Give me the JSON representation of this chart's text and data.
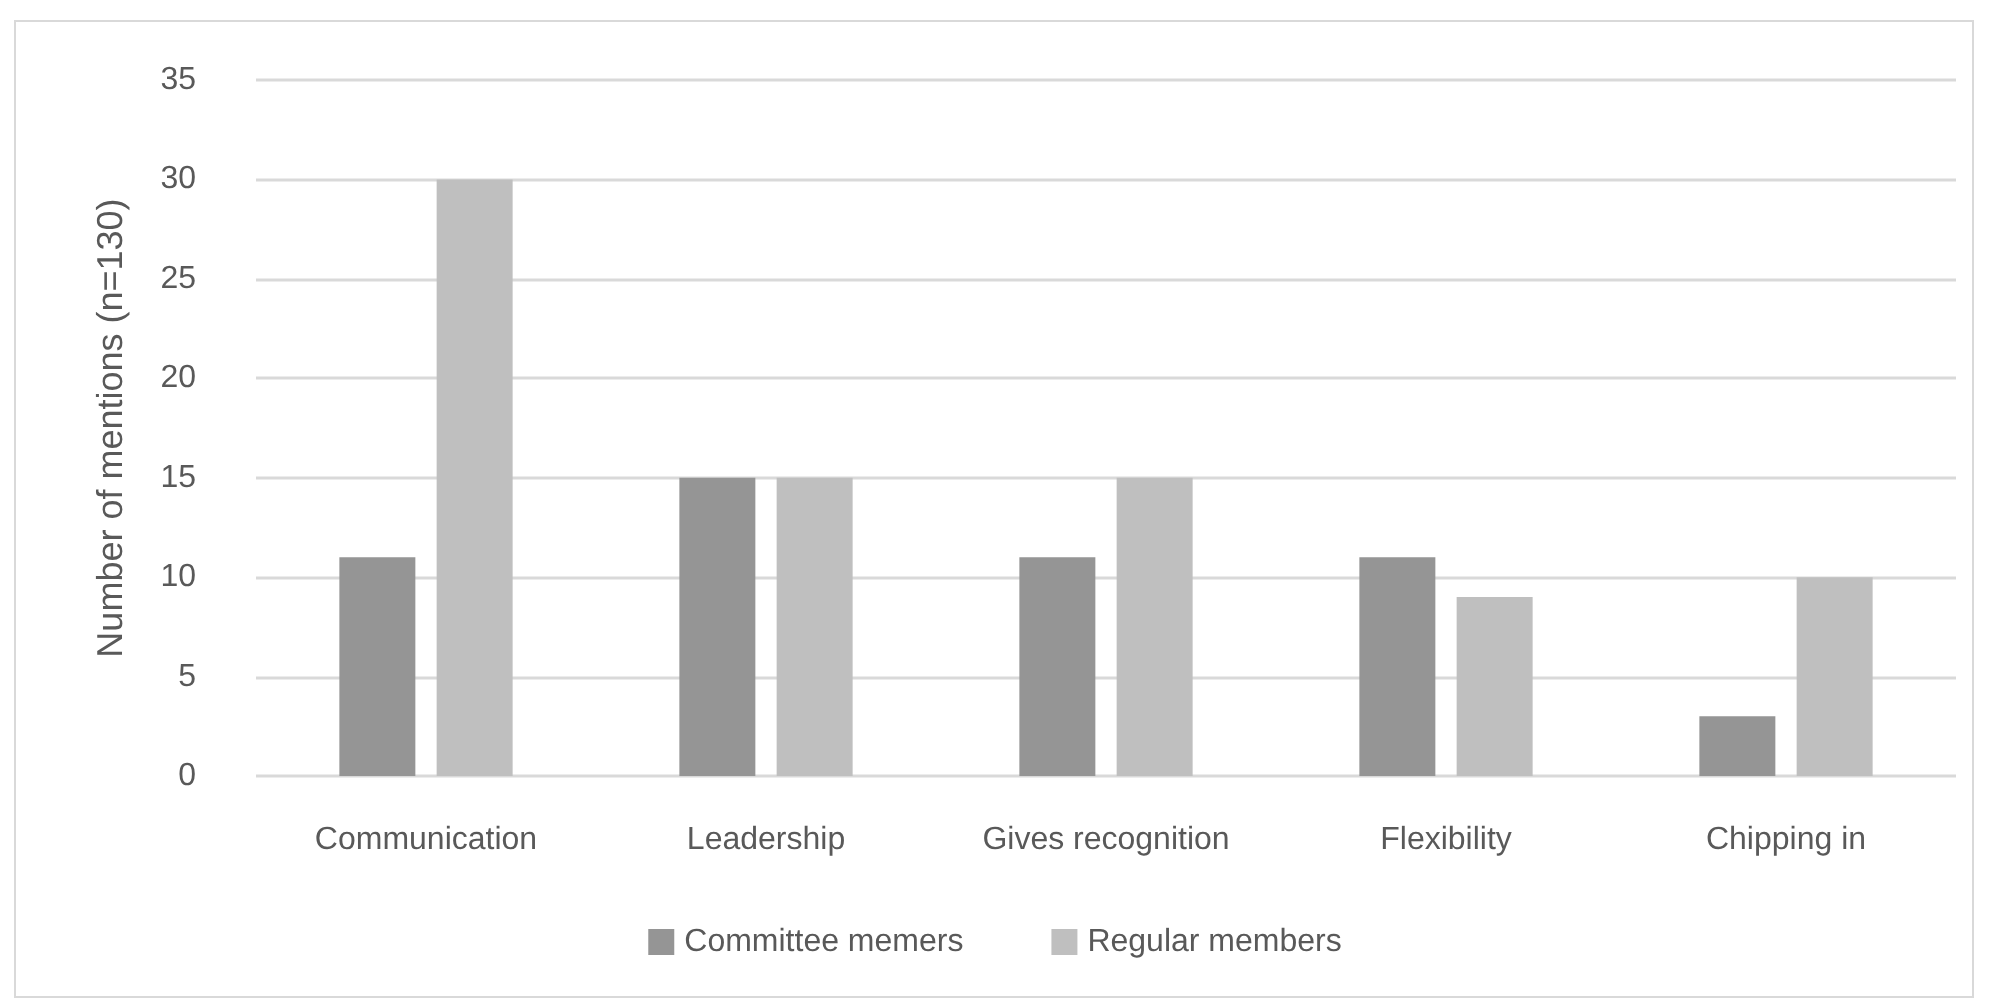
{
  "chart_data": {
    "type": "bar",
    "ylabel": "Number of mentions (n=130)",
    "categories": [
      "Communication",
      "Leadership",
      "Gives recognition",
      "Flexibility",
      "Chipping in"
    ],
    "series": [
      {
        "name": "Committee memers",
        "color": "#959595",
        "values": [
          11,
          15,
          11,
          11,
          3
        ]
      },
      {
        "name": "Regular members",
        "color": "#bfbfbf",
        "values": [
          30,
          15,
          15,
          9,
          10
        ]
      }
    ],
    "ylim": [
      0,
      35
    ],
    "yticks": [
      0,
      5,
      10,
      15,
      20,
      25,
      30,
      35
    ],
    "grid": "y",
    "legend": "bottom"
  }
}
